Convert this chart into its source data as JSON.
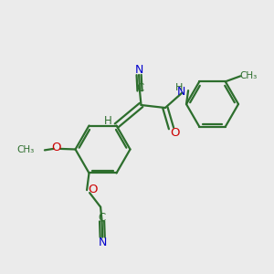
{
  "bg_color": "#ebebeb",
  "bond_color": "#2d6e2d",
  "N_color": "#0000cc",
  "O_color": "#cc0000",
  "line_width": 1.6,
  "figsize": [
    3.0,
    3.0
  ],
  "dpi": 100,
  "xlim": [
    0,
    10
  ],
  "ylim": [
    0,
    10
  ]
}
